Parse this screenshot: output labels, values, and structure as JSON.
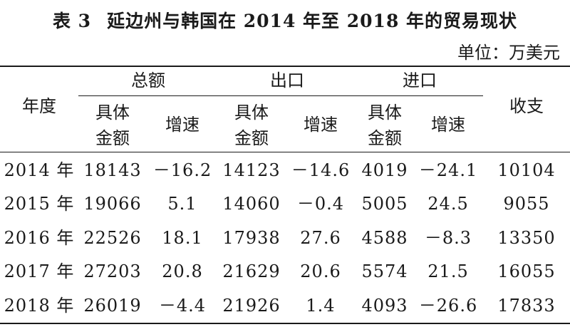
{
  "table": {
    "title_number": "表 3",
    "title_text": "延边州与韩国在 2014 年至 2018 年的贸易现状",
    "unit": "单位：万美元",
    "header": {
      "year": "年度",
      "balance": "收支",
      "groups": [
        "总额",
        "出口",
        "进口"
      ],
      "sub_amount": "具体\n金额",
      "sub_growth": "增速"
    },
    "rows": [
      {
        "year": "2014 年",
        "cells": [
          "18143",
          "－16.2",
          "14123",
          "－14.6",
          "4019",
          "－24.1",
          "10104"
        ]
      },
      {
        "year": "2015 年",
        "cells": [
          "19066",
          "5.1",
          "14060",
          "－0.4",
          "5005",
          "24.5",
          "9055"
        ]
      },
      {
        "year": "2016 年",
        "cells": [
          "22526",
          "18.1",
          "17938",
          "27.6",
          "4588",
          "－8.3",
          "13350"
        ]
      },
      {
        "year": "2017 年",
        "cells": [
          "27203",
          "20.8",
          "21629",
          "20.6",
          "5574",
          "21.5",
          "16055"
        ]
      },
      {
        "year": "2018 年",
        "cells": [
          "26019",
          "－4.4",
          "21926",
          "1.4",
          "4093",
          "－26.6",
          "17833"
        ]
      }
    ]
  }
}
